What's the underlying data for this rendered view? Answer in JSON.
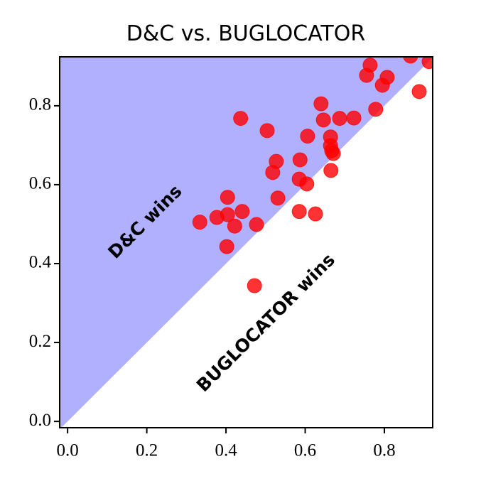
{
  "chart_data": {
    "type": "scatter",
    "title": "D&C vs. BUGLOCATOR",
    "annotations": [
      "D&C wins",
      "BUGLOCATOR wins"
    ],
    "region_color": "#b0b0ff",
    "series": [
      {
        "color": "#ff0000",
        "x": [
          0.334,
          0.377,
          0.404,
          0.404,
          0.422,
          0.441,
          0.402,
          0.477,
          0.437,
          0.504,
          0.527,
          0.518,
          0.531,
          0.587,
          0.585,
          0.604,
          0.606,
          0.64,
          0.646,
          0.664,
          0.664,
          0.667,
          0.671,
          0.687,
          0.723,
          0.665,
          0.585,
          0.626,
          0.472,
          0.755,
          0.764,
          0.807,
          0.795,
          0.778,
          0.866,
          0.888,
          0.913
        ],
        "values": [
          0.505,
          0.517,
          0.524,
          0.568,
          0.495,
          0.532,
          0.443,
          0.499,
          0.768,
          0.737,
          0.659,
          0.631,
          0.566,
          0.663,
          0.614,
          0.602,
          0.723,
          0.805,
          0.764,
          0.721,
          0.699,
          0.686,
          0.679,
          0.768,
          0.769,
          0.636,
          0.532,
          0.526,
          0.344,
          0.877,
          0.903,
          0.872,
          0.852,
          0.791,
          0.926,
          0.836,
          0.912
        ]
      }
    ],
    "xlim": [
      -0.02,
      0.922
    ],
    "ylim": [
      -0.016,
      0.924
    ],
    "xticks": [
      {
        "value": 0,
        "label": "0.0"
      },
      0.2,
      0.4,
      0.6,
      0.8
    ],
    "yticks": [
      {
        "value": 0,
        "label": "0.0"
      },
      0.2,
      0.4,
      0.6,
      0.8
    ]
  }
}
